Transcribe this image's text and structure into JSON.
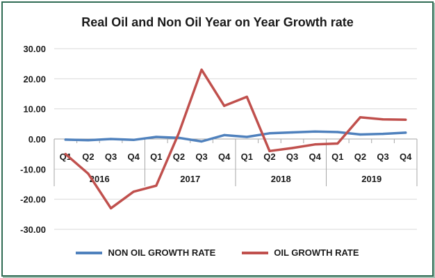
{
  "chart_data": {
    "type": "line",
    "title": "Real Oil and Non Oil Year on Year Growth rate",
    "xlabel": "",
    "ylabel": "",
    "ylim": [
      -30,
      30
    ],
    "yticks": [
      "30.00",
      "20.00",
      "10.00",
      "0.00",
      "-10.00",
      "-20.00",
      "-30.00"
    ],
    "categories": [
      "Q1",
      "Q2",
      "Q3",
      "Q4",
      "Q1",
      "Q2",
      "Q3",
      "Q4",
      "Q1",
      "Q2",
      "Q3",
      "Q4",
      "Q1",
      "Q2",
      "Q3",
      "Q4"
    ],
    "years": [
      "2016",
      "2017",
      "2018",
      "2019"
    ],
    "grid": true,
    "legend_position": "bottom",
    "series": [
      {
        "name": "NON OIL GROWTH RATE",
        "color": "#4f81bd",
        "values": [
          -0.2,
          -0.4,
          0.0,
          -0.3,
          0.7,
          0.4,
          -0.8,
          1.3,
          0.7,
          1.9,
          2.2,
          2.5,
          2.3,
          1.5,
          1.7,
          2.1
        ]
      },
      {
        "name": "OIL GROWTH RATE",
        "color": "#c0504d",
        "values": [
          -5.0,
          -11.5,
          -23.0,
          -17.5,
          -15.5,
          2.0,
          23.0,
          11.0,
          14.0,
          -4.0,
          -3.0,
          -1.8,
          -1.5,
          7.2,
          6.5,
          6.4
        ]
      }
    ]
  }
}
